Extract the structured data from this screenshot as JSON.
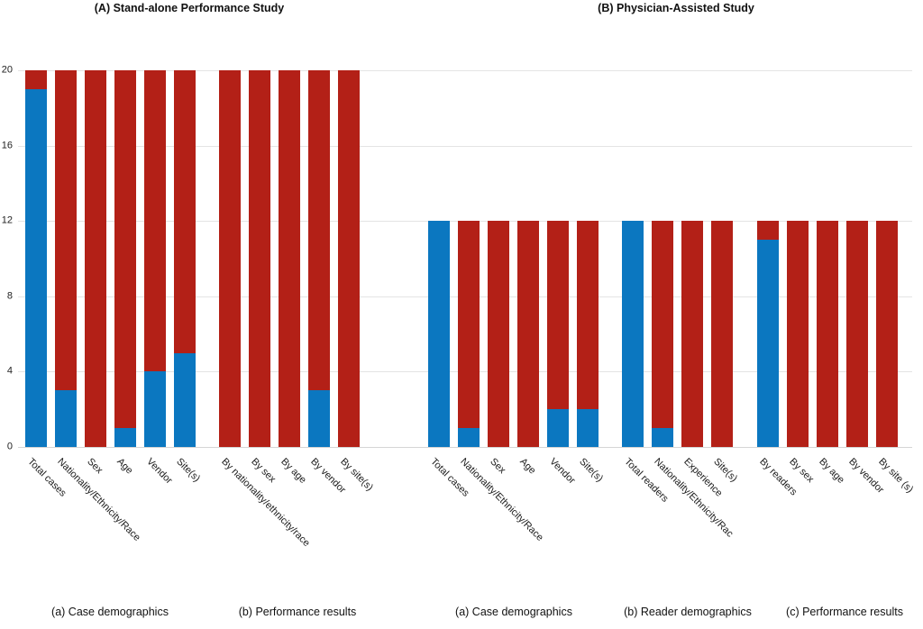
{
  "chart_data": {
    "type": "bar",
    "stacked": true,
    "ylim": [
      0,
      20
    ],
    "yticks": [
      0,
      4,
      8,
      12,
      16,
      20
    ],
    "grid": true,
    "legend": "none",
    "colors": {
      "blue": "#0b77c0",
      "red": "#b32017"
    },
    "panels": [
      {
        "title": "(A) Stand-alone Performance Study",
        "bar_total": 20,
        "groups": [
          {
            "caption": "(a) Case demographics",
            "bars": [
              {
                "label": "Total cases",
                "blue": 19,
                "red": 1
              },
              {
                "label": "Nationality/Ethnicity/Race",
                "blue": 3,
                "red": 17
              },
              {
                "label": "Sex",
                "blue": 0,
                "red": 20
              },
              {
                "label": "Age",
                "blue": 1,
                "red": 19
              },
              {
                "label": "Vendor",
                "blue": 4,
                "red": 16
              },
              {
                "label": "Site(s)",
                "blue": 5,
                "red": 15
              }
            ]
          },
          {
            "caption": "(b) Performance results",
            "bars": [
              {
                "label": "By nationality/ethnicity/race",
                "blue": 0,
                "red": 20
              },
              {
                "label": "By sex",
                "blue": 0,
                "red": 20
              },
              {
                "label": "By age",
                "blue": 0,
                "red": 20
              },
              {
                "label": "By vendor",
                "blue": 3,
                "red": 17
              },
              {
                "label": "By site(s)",
                "blue": 0,
                "red": 20
              }
            ]
          }
        ]
      },
      {
        "title": "(B) Physician-Assisted Study",
        "bar_total": 12,
        "groups": [
          {
            "caption": "(a) Case demographics",
            "bars": [
              {
                "label": "Total cases",
                "blue": 12,
                "red": 0
              },
              {
                "label": "Nationality/Ethnicity/Race",
                "blue": 1,
                "red": 11
              },
              {
                "label": "Sex",
                "blue": 0,
                "red": 12
              },
              {
                "label": "Age",
                "blue": 0,
                "red": 12
              },
              {
                "label": "Vendor",
                "blue": 2,
                "red": 10
              },
              {
                "label": "Site(s)",
                "blue": 2,
                "red": 10
              }
            ]
          },
          {
            "caption": "(b) Reader demographics",
            "bars": [
              {
                "label": "Total readers",
                "blue": 12,
                "red": 0
              },
              {
                "label": "Nationality/Ethnicity/Rac",
                "blue": 1,
                "red": 11
              },
              {
                "label": "Experience",
                "blue": 0,
                "red": 12
              },
              {
                "label": "Site(s)",
                "blue": 0,
                "red": 12
              }
            ]
          },
          {
            "caption": "(c) Performance results",
            "bars": [
              {
                "label": "By readers",
                "blue": 11,
                "red": 1
              },
              {
                "label": "By sex",
                "blue": 0,
                "red": 12
              },
              {
                "label": "By age",
                "blue": 0,
                "red": 12
              },
              {
                "label": "By vendor",
                "blue": 0,
                "red": 12
              },
              {
                "label": "By site (s)",
                "blue": 0,
                "red": 12
              }
            ]
          }
        ]
      }
    ]
  }
}
